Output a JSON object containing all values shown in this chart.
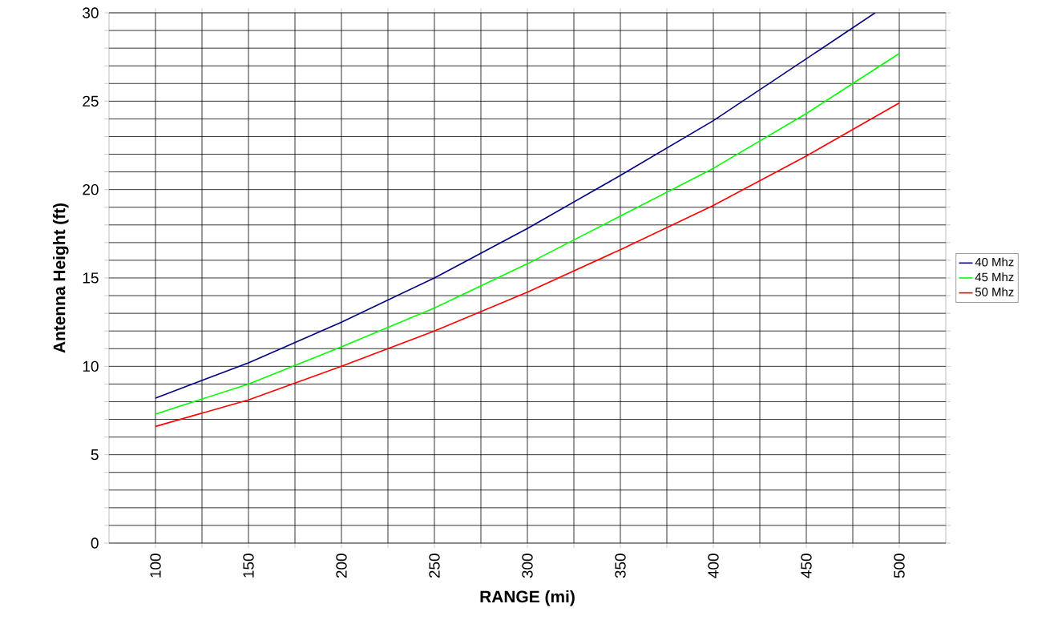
{
  "chart_data": {
    "type": "line",
    "xlabel": "RANGE (mi)",
    "ylabel": "Antenna Height (ft)",
    "x": [
      100,
      150,
      200,
      250,
      300,
      350,
      400,
      450,
      500
    ],
    "series": [
      {
        "name": "40 Mhz",
        "color": "#000080",
        "x": [
          100,
          150,
          200,
          250,
          300,
          350,
          400,
          450,
          487
        ],
        "values": [
          8.2,
          10.2,
          12.5,
          15.0,
          17.8,
          20.8,
          23.9,
          27.4,
          30.0
        ]
      },
      {
        "name": "45 Mhz",
        "color": "#00ff00",
        "values": [
          7.3,
          9.0,
          11.1,
          13.3,
          15.8,
          18.5,
          21.2,
          24.3,
          27.7
        ]
      },
      {
        "name": "50 Mhz",
        "color": "#ff0000",
        "values": [
          6.6,
          8.1,
          10.0,
          12.0,
          14.2,
          16.6,
          19.1,
          21.9,
          24.9
        ]
      }
    ],
    "xlim": [
      75,
      525
    ],
    "xticks": [
      100,
      {
        "value": 125,
        "label": null
      },
      150,
      {
        "value": 175,
        "label": null
      },
      200,
      {
        "value": 225,
        "label": null
      },
      250,
      {
        "value": 275,
        "label": null
      },
      300,
      {
        "value": 325,
        "label": null
      },
      350,
      {
        "value": 375,
        "label": null
      },
      400,
      {
        "value": 425,
        "label": null
      },
      450,
      {
        "value": 475,
        "label": null
      },
      500
    ],
    "ylim": [
      0,
      30
    ],
    "yticks": [
      0,
      {
        "value": 1,
        "label": null
      },
      {
        "value": 2,
        "label": null
      },
      {
        "value": 3,
        "label": null
      },
      {
        "value": 4,
        "label": null
      },
      5,
      {
        "value": 6,
        "label": null
      },
      {
        "value": 7,
        "label": null
      },
      {
        "value": 8,
        "label": null
      },
      {
        "value": 9,
        "label": null
      },
      10,
      {
        "value": 11,
        "label": null
      },
      {
        "value": 12,
        "label": null
      },
      {
        "value": 13,
        "label": null
      },
      {
        "value": 14,
        "label": null
      },
      15,
      {
        "value": 16,
        "label": null
      },
      {
        "value": 17,
        "label": null
      },
      {
        "value": 18,
        "label": null
      },
      {
        "value": 19,
        "label": null
      },
      20,
      {
        "value": 21,
        "label": null
      },
      {
        "value": 22,
        "label": null
      },
      {
        "value": 23,
        "label": null
      },
      {
        "value": 24,
        "label": null
      },
      25,
      {
        "value": 26,
        "label": null
      },
      {
        "value": 27,
        "label": null
      },
      {
        "value": 28,
        "label": null
      },
      {
        "value": 29,
        "label": null
      },
      30
    ],
    "grid": true,
    "legend": "right",
    "marker": "none",
    "line_style": "solid"
  }
}
